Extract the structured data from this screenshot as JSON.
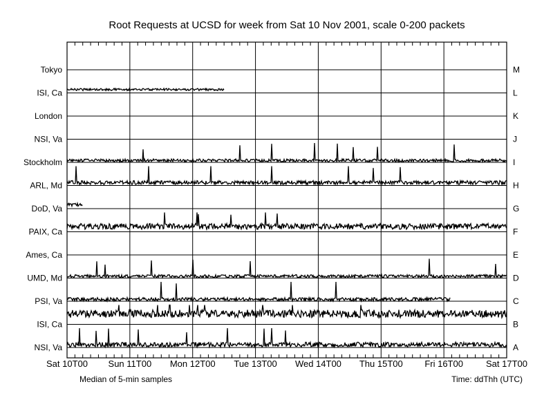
{
  "chart_data": {
    "type": "line",
    "title": "Root Requests at UCSD for week from Sat 10 Nov 2001, scale 0-200 packets",
    "footer_left": "Median of 5-min samples",
    "footer_right": "Time: ddThh (UTC)",
    "x_ticks": [
      "Sat 10T00",
      "Sun 11T00",
      "Mon 12T00",
      "Tue 13T00",
      "Wed 14T00",
      "Thu 15T00",
      "Fri 16T00",
      "Sat 17T00"
    ],
    "x_range_days": [
      0,
      7
    ],
    "y_scale_packets": [
      0,
      200
    ],
    "grid": true,
    "series": [
      {
        "name": "Tokyo",
        "root": "M",
        "level": 0,
        "noise": 0,
        "active": []
      },
      {
        "name": "ISI, Ca",
        "root": "L",
        "level": 35,
        "noise": 12,
        "active": [
          [
            0,
            2.5
          ]
        ]
      },
      {
        "name": "London",
        "root": "K",
        "level": 0,
        "noise": 0,
        "active": []
      },
      {
        "name": "NSI, Va",
        "root": "J",
        "level": 0,
        "noise": 0,
        "active": []
      },
      {
        "name": "Stockholm",
        "root": "I",
        "level": 20,
        "noise": 15,
        "active": [
          [
            0,
            7
          ]
        ]
      },
      {
        "name": "ARL, Md",
        "root": "H",
        "level": 30,
        "noise": 20,
        "active": [
          [
            0,
            7
          ]
        ]
      },
      {
        "name": "DoD, Va",
        "root": "G",
        "level": 40,
        "noise": 15,
        "active": [
          [
            0,
            0.25
          ]
        ]
      },
      {
        "name": "PAIX, Ca",
        "root": "F",
        "level": 55,
        "noise": 30,
        "active": [
          [
            0,
            7
          ]
        ]
      },
      {
        "name": "Ames, Ca",
        "root": "E",
        "level": 0,
        "noise": 0,
        "active": []
      },
      {
        "name": "UMD, Md",
        "root": "D",
        "level": 20,
        "noise": 15,
        "active": [
          [
            0,
            7
          ]
        ]
      },
      {
        "name": "PSI, Va",
        "root": "C",
        "level": 20,
        "noise": 18,
        "active": [
          [
            0,
            6.1
          ]
        ]
      },
      {
        "name": "ISI, Ca",
        "root": "B",
        "level": 110,
        "noise": 40,
        "active": [
          [
            0,
            7
          ]
        ]
      },
      {
        "name": "NSI, Va",
        "root": "A",
        "level": 30,
        "noise": 25,
        "active": [
          [
            0,
            7
          ]
        ]
      }
    ]
  }
}
